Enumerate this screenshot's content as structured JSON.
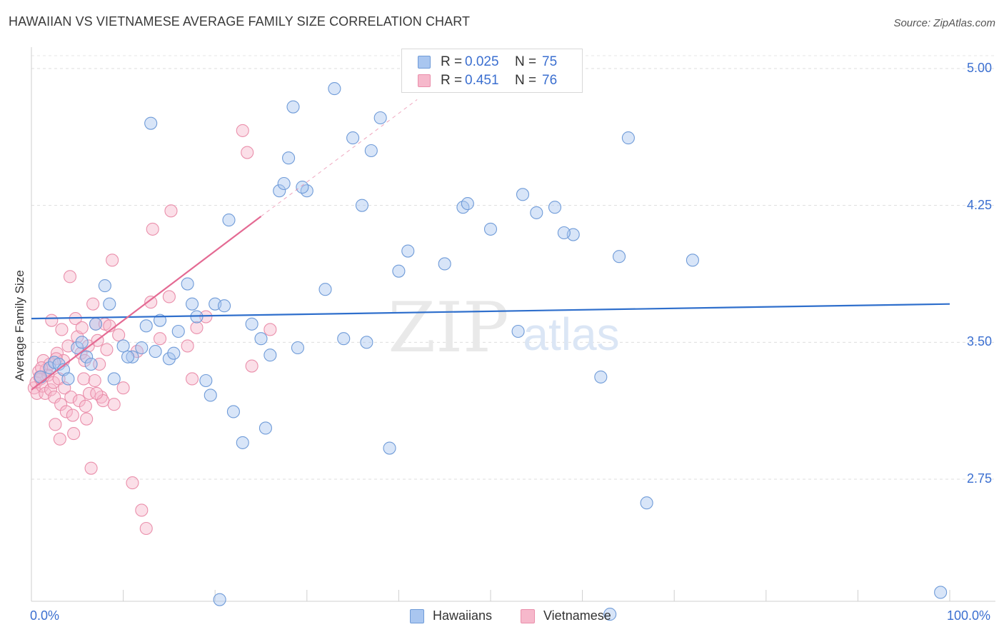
{
  "header": {
    "title": "HAWAIIAN VS VIETNAMESE AVERAGE FAMILY SIZE CORRELATION CHART",
    "source": "Source: ZipAtlas.com"
  },
  "legend_top": {
    "rows": [
      {
        "r_label": "R =",
        "r_value": "0.025",
        "n_label": "N =",
        "n_value": "75"
      },
      {
        "r_label": "R =",
        "r_value": "0.451",
        "n_label": "N =",
        "n_value": "76"
      }
    ]
  },
  "watermark": {
    "zip": "ZIP",
    "atlas": "atlas"
  },
  "colors": {
    "hawaiians_fill": "#a9c6f0",
    "hawaiians_stroke": "#6f9bd8",
    "hawaiians_line": "#2f6fcc",
    "vietnamese_fill": "#f6b8cb",
    "vietnamese_stroke": "#ea8fab",
    "vietnamese_line": "#e46a93",
    "axis_text": "#3b6fd0"
  },
  "chart_data": {
    "type": "scatter",
    "title": "HAWAIIAN VS VIETNAMESE AVERAGE FAMILY SIZE CORRELATION CHART",
    "xlabel": "",
    "ylabel": "Average Family Size",
    "x_tick_labels": [
      "0.0%",
      "100.0%"
    ],
    "y_ticks": [
      2.75,
      3.5,
      4.25,
      5.0
    ],
    "y_tick_labels": [
      "2.75",
      "3.50",
      "4.25",
      "5.00"
    ],
    "xlim": [
      0,
      100
    ],
    "ylim": [
      2.0,
      5.1
    ],
    "grid": true,
    "legend_position": "top-center",
    "series": [
      {
        "name": "Hawaiians",
        "r": 0.025,
        "n": 75,
        "trend": {
          "x": [
            0,
            100
          ],
          "y": [
            3.63,
            3.71
          ]
        },
        "points": [
          [
            1,
            3.31
          ],
          [
            2,
            3.36
          ],
          [
            2.5,
            3.39
          ],
          [
            3,
            3.38
          ],
          [
            3.5,
            3.35
          ],
          [
            4,
            3.3
          ],
          [
            5,
            3.47
          ],
          [
            5.5,
            3.5
          ],
          [
            6,
            3.42
          ],
          [
            6.5,
            3.38
          ],
          [
            7,
            3.6
          ],
          [
            8,
            3.81
          ],
          [
            8.5,
            3.71
          ],
          [
            9,
            3.3
          ],
          [
            10,
            3.48
          ],
          [
            11,
            3.42
          ],
          [
            12,
            3.47
          ],
          [
            12.5,
            3.59
          ],
          [
            13,
            4.7
          ],
          [
            13.5,
            3.45
          ],
          [
            14,
            3.62
          ],
          [
            15,
            3.41
          ],
          [
            15.5,
            3.44
          ],
          [
            16,
            3.56
          ],
          [
            17,
            3.82
          ],
          [
            17.5,
            3.71
          ],
          [
            18,
            3.64
          ],
          [
            19,
            3.29
          ],
          [
            19.5,
            3.21
          ],
          [
            20,
            3.71
          ],
          [
            21,
            3.7
          ],
          [
            21.5,
            4.17
          ],
          [
            22,
            3.12
          ],
          [
            23,
            2.95
          ],
          [
            24,
            3.6
          ],
          [
            25,
            3.52
          ],
          [
            20.5,
            2.09
          ],
          [
            25.5,
            3.03
          ],
          [
            26,
            3.43
          ],
          [
            27,
            4.33
          ],
          [
            27.5,
            4.37
          ],
          [
            28,
            4.51
          ],
          [
            28.5,
            4.79
          ],
          [
            29,
            3.47
          ],
          [
            30,
            4.33
          ],
          [
            32,
            3.79
          ],
          [
            33,
            4.89
          ],
          [
            34,
            3.52
          ],
          [
            35,
            4.62
          ],
          [
            36,
            4.25
          ],
          [
            36.5,
            3.5
          ],
          [
            37,
            4.55
          ],
          [
            38,
            4.73
          ],
          [
            39,
            2.92
          ],
          [
            40,
            3.89
          ],
          [
            41,
            4.0
          ],
          [
            47,
            4.24
          ],
          [
            47.5,
            4.26
          ],
          [
            50,
            4.12
          ],
          [
            53,
            3.56
          ],
          [
            53.5,
            4.31
          ],
          [
            55,
            4.21
          ],
          [
            57,
            4.24
          ],
          [
            59,
            4.09
          ],
          [
            62,
            3.31
          ],
          [
            64,
            3.97
          ],
          [
            65,
            4.62
          ],
          [
            67,
            2.62
          ],
          [
            72,
            3.95
          ],
          [
            63,
            2.01
          ],
          [
            99,
            2.13
          ],
          [
            58,
            4.1
          ],
          [
            45,
            3.93
          ],
          [
            29.5,
            4.35
          ],
          [
            10.5,
            3.42
          ]
        ]
      },
      {
        "name": "Vietnamese",
        "r": 0.451,
        "n": 76,
        "trend": {
          "x": [
            0,
            25
          ],
          "y": [
            3.24,
            4.19
          ]
        },
        "trend_extension": {
          "x": [
            25,
            42
          ],
          "y": [
            4.19,
            4.83
          ]
        },
        "points": [
          [
            0.3,
            3.25
          ],
          [
            0.5,
            3.28
          ],
          [
            0.6,
            3.22
          ],
          [
            0.8,
            3.34
          ],
          [
            1,
            3.3
          ],
          [
            1.2,
            3.26
          ],
          [
            1.3,
            3.4
          ],
          [
            1.5,
            3.22
          ],
          [
            1.6,
            3.35
          ],
          [
            1.8,
            3.32
          ],
          [
            2,
            3.38
          ],
          [
            2.1,
            3.24
          ],
          [
            2.2,
            3.62
          ],
          [
            2.4,
            3.28
          ],
          [
            2.5,
            3.2
          ],
          [
            2.6,
            3.05
          ],
          [
            2.8,
            3.44
          ],
          [
            3,
            3.3
          ],
          [
            3.2,
            3.16
          ],
          [
            3.3,
            3.57
          ],
          [
            3.5,
            3.4
          ],
          [
            3.6,
            3.25
          ],
          [
            3.8,
            3.12
          ],
          [
            4,
            3.48
          ],
          [
            4.2,
            3.86
          ],
          [
            4.3,
            3.2
          ],
          [
            4.5,
            3.1
          ],
          [
            4.6,
            3.0
          ],
          [
            4.8,
            3.63
          ],
          [
            5,
            3.53
          ],
          [
            5.2,
            3.18
          ],
          [
            5.4,
            3.44
          ],
          [
            5.5,
            3.58
          ],
          [
            5.7,
            3.3
          ],
          [
            5.9,
            3.15
          ],
          [
            6,
            3.08
          ],
          [
            6.2,
            3.48
          ],
          [
            6.3,
            3.22
          ],
          [
            6.5,
            2.81
          ],
          [
            6.7,
            3.71
          ],
          [
            6.9,
            3.29
          ],
          [
            7,
            3.6
          ],
          [
            7.2,
            3.51
          ],
          [
            7.4,
            3.38
          ],
          [
            7.6,
            3.2
          ],
          [
            7.8,
            3.18
          ],
          [
            8,
            3.6
          ],
          [
            8.2,
            3.46
          ],
          [
            8.5,
            3.59
          ],
          [
            8.8,
            3.95
          ],
          [
            9,
            3.16
          ],
          [
            9.5,
            3.54
          ],
          [
            10,
            3.25
          ],
          [
            11,
            2.73
          ],
          [
            11.5,
            3.45
          ],
          [
            12,
            2.58
          ],
          [
            12.5,
            2.48
          ],
          [
            13,
            3.72
          ],
          [
            13.2,
            4.12
          ],
          [
            14,
            3.52
          ],
          [
            15,
            3.75
          ],
          [
            15.2,
            4.22
          ],
          [
            17,
            3.48
          ],
          [
            17.5,
            3.3
          ],
          [
            18,
            3.58
          ],
          [
            19,
            3.64
          ],
          [
            23,
            4.66
          ],
          [
            23.5,
            4.54
          ],
          [
            24,
            3.37
          ],
          [
            26,
            3.57
          ],
          [
            2.7,
            3.41
          ],
          [
            3.1,
            2.97
          ],
          [
            1.1,
            3.36
          ],
          [
            0.9,
            3.31
          ],
          [
            5.8,
            3.4
          ],
          [
            7.1,
            3.22
          ]
        ]
      }
    ]
  },
  "legend_bottom": {
    "items": [
      {
        "label": "Hawaiians"
      },
      {
        "label": "Vietnamese"
      }
    ]
  }
}
